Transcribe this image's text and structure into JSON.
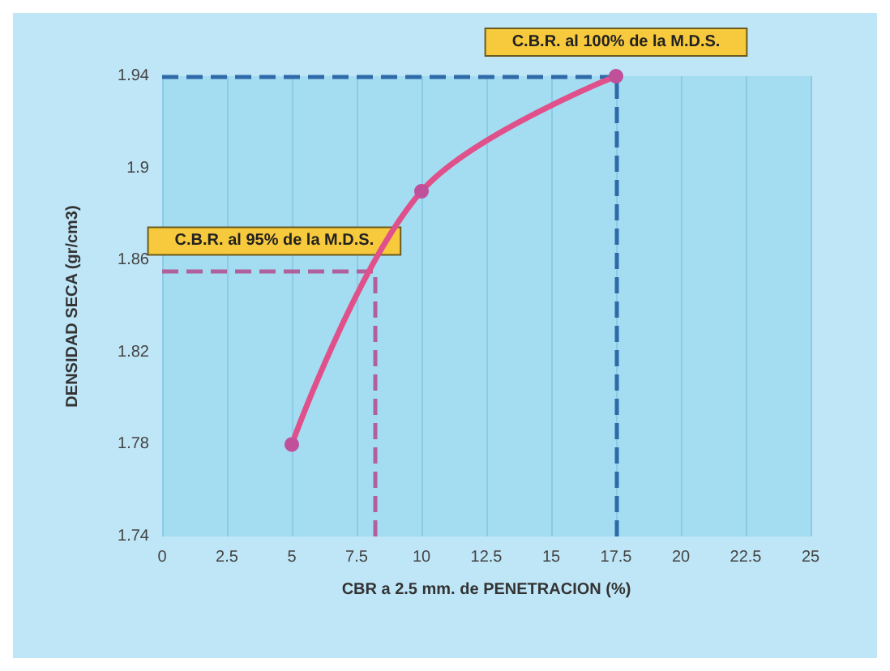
{
  "chart_data": {
    "type": "line",
    "xlabel": "CBR a 2.5 mm. de PENETRACION (%)",
    "ylabel": "DENSIDAD SECA (gr/cm3)",
    "x": [
      5,
      10,
      17.5
    ],
    "series": [
      {
        "color": "#e0508a",
        "values": [
          1.78,
          1.89,
          1.94
        ]
      }
    ],
    "xlim": [
      0,
      25
    ],
    "xticks": [
      0,
      2.5,
      5,
      7.5,
      10,
      12.5,
      15,
      17.5,
      20,
      22.5,
      25
    ],
    "ylim": [
      1.74,
      1.94
    ],
    "yticks": [
      1.74,
      1.78,
      1.82,
      1.86,
      1.9,
      1.94
    ],
    "grid": "x",
    "marker": "circle",
    "line_style": "solid",
    "ref_lines": [
      {
        "axis": "y",
        "value": 1.94,
        "color": "#2e6aa8",
        "line_style": "dashed"
      },
      {
        "axis": "x",
        "value": 17.5,
        "color": "#2e6aa8",
        "line_style": "dashed"
      },
      {
        "axis": "y",
        "value": 1.855,
        "color": "#b0609a",
        "line_style": "dashed"
      },
      {
        "axis": "x",
        "value": 8.2,
        "color": "#b0609a",
        "line_style": "dashed"
      }
    ],
    "annotations": [
      {
        "text": "C.B.R. al 100% de la M.D.S.",
        "x": 17.5,
        "y": 1.94
      },
      {
        "text": "C.B.R. al 95% de la M.D.S.",
        "x": 8.2,
        "y": 1.855
      }
    ]
  }
}
